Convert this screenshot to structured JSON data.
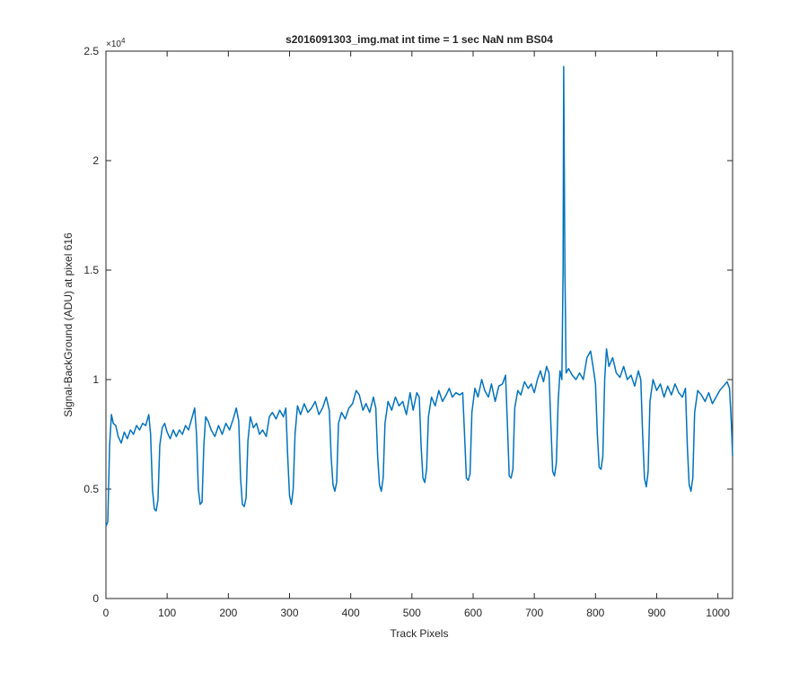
{
  "chart_data": {
    "type": "line",
    "title": "s2016091303_img.mat int time = 1 sec  NaN nm BS04",
    "x_label": "Track Pixels",
    "y_label": "Signal-BackGround (ADU) at pixel 616",
    "y_exponent_label": "×10",
    "y_exponent_power": "4",
    "xlim": [
      0,
      1024
    ],
    "ylim": [
      0,
      25000
    ],
    "xticks": [
      0,
      100,
      200,
      300,
      400,
      500,
      600,
      700,
      800,
      900,
      1000
    ],
    "yticks": [
      0,
      {
        "value": 5000,
        "label": "0.5"
      },
      {
        "value": 10000,
        "label": "1"
      },
      {
        "value": 15000,
        "label": "1.5"
      },
      {
        "value": 20000,
        "label": "2"
      },
      {
        "value": 25000,
        "label": "2.5"
      }
    ],
    "series": [
      {
        "color": "#0072bd",
        "x": [
          0,
          3,
          6,
          9,
          12,
          16,
          20,
          25,
          30,
          35,
          40,
          45,
          50,
          55,
          60,
          65,
          70,
          73,
          76,
          79,
          82,
          85,
          88,
          92,
          96,
          100,
          105,
          110,
          115,
          120,
          125,
          130,
          135,
          140,
          145,
          148,
          151,
          154,
          157,
          160,
          163,
          167,
          172,
          178,
          184,
          190,
          196,
          202,
          208,
          213,
          217,
          220,
          223,
          226,
          229,
          232,
          236,
          241,
          246,
          251,
          256,
          262,
          267,
          272,
          278,
          284,
          290,
          294,
          297,
          300,
          303,
          306,
          309,
          313,
          318,
          324,
          330,
          336,
          342,
          348,
          354,
          360,
          365,
          368,
          371,
          374,
          377,
          380,
          385,
          391,
          397,
          403,
          409,
          414,
          420,
          425,
          431,
          437,
          441,
          444,
          447,
          450,
          453,
          456,
          461,
          467,
          473,
          479,
          485,
          491,
          497,
          502,
          508,
          512,
          515,
          518,
          521,
          524,
          527,
          532,
          538,
          544,
          550,
          556,
          561,
          566,
          572,
          578,
          583,
          586,
          589,
          592,
          595,
          598,
          603,
          608,
          614,
          619,
          625,
          630,
          636,
          642,
          648,
          653,
          656,
          659,
          662,
          665,
          668,
          673,
          678,
          684,
          690,
          695,
          700,
          705,
          710,
          715,
          720,
          724,
          727,
          730,
          733,
          736,
          739,
          742,
          745,
          747,
          748,
          750,
          752,
          756,
          762,
          768,
          774,
          780,
          786,
          792,
          797,
          800,
          803,
          806,
          809,
          812,
          815,
          818,
          822,
          828,
          834,
          840,
          846,
          852,
          858,
          864,
          870,
          874,
          877,
          880,
          883,
          886,
          889,
          894,
          900,
          906,
          912,
          918,
          924,
          930,
          936,
          942,
          947,
          950,
          953,
          956,
          959,
          962,
          967,
          973,
          979,
          985,
          991,
          997,
          1003,
          1009,
          1015,
          1019,
          1022,
          1024
        ],
        "values": [
          3300,
          3500,
          7000,
          8400,
          8000,
          7900,
          7400,
          7100,
          7600,
          7300,
          7700,
          7500,
          7900,
          7700,
          8000,
          7900,
          8400,
          7500,
          5000,
          4100,
          4000,
          4500,
          7000,
          7800,
          8000,
          7600,
          7300,
          7700,
          7400,
          7700,
          7500,
          7900,
          7700,
          8200,
          8700,
          7500,
          5000,
          4300,
          4400,
          7000,
          8300,
          8100,
          7700,
          7400,
          7900,
          7500,
          8000,
          7700,
          8200,
          8700,
          8100,
          5500,
          4300,
          4200,
          4600,
          7200,
          8300,
          7800,
          8000,
          7500,
          7700,
          7400,
          8300,
          8500,
          8200,
          8600,
          8300,
          8700,
          6500,
          4700,
          4300,
          5000,
          7500,
          8800,
          8400,
          8900,
          8500,
          8700,
          9000,
          8400,
          8700,
          9200,
          8600,
          6500,
          5200,
          4900,
          5300,
          8000,
          8500,
          8200,
          8700,
          8900,
          9500,
          9300,
          8600,
          8900,
          8500,
          9200,
          8700,
          6500,
          5200,
          4900,
          5500,
          8000,
          9000,
          8600,
          9200,
          8800,
          9000,
          8400,
          9400,
          8600,
          9400,
          9200,
          7000,
          5500,
          5300,
          5900,
          8300,
          9200,
          8800,
          9500,
          9000,
          9300,
          9600,
          9200,
          9400,
          9300,
          9400,
          7500,
          5500,
          5400,
          5700,
          8500,
          9600,
          9200,
          10000,
          9500,
          9200,
          9800,
          9000,
          9700,
          9800,
          10200,
          8000,
          5600,
          5500,
          5900,
          8700,
          9500,
          9300,
          9900,
          9600,
          9800,
          9400,
          10000,
          10400,
          9900,
          10600,
          10300,
          8000,
          5800,
          5600,
          6200,
          9000,
          10400,
          10000,
          15000,
          24300,
          15000,
          10300,
          10500,
          10200,
          10000,
          10300,
          10000,
          11000,
          11300,
          10400,
          9800,
          7500,
          6000,
          5900,
          6500,
          10000,
          11400,
          10600,
          11000,
          10300,
          10100,
          10600,
          10000,
          10200,
          9700,
          10400,
          10000,
          7500,
          5500,
          5100,
          5800,
          9000,
          10000,
          9500,
          9800,
          9200,
          9700,
          9300,
          9800,
          9400,
          9200,
          9600,
          7000,
          5200,
          4900,
          5500,
          8500,
          9500,
          9300,
          9000,
          9400,
          8900,
          9200,
          9500,
          9700,
          9900,
          9600,
          8000,
          6500
        ]
      }
    ]
  }
}
